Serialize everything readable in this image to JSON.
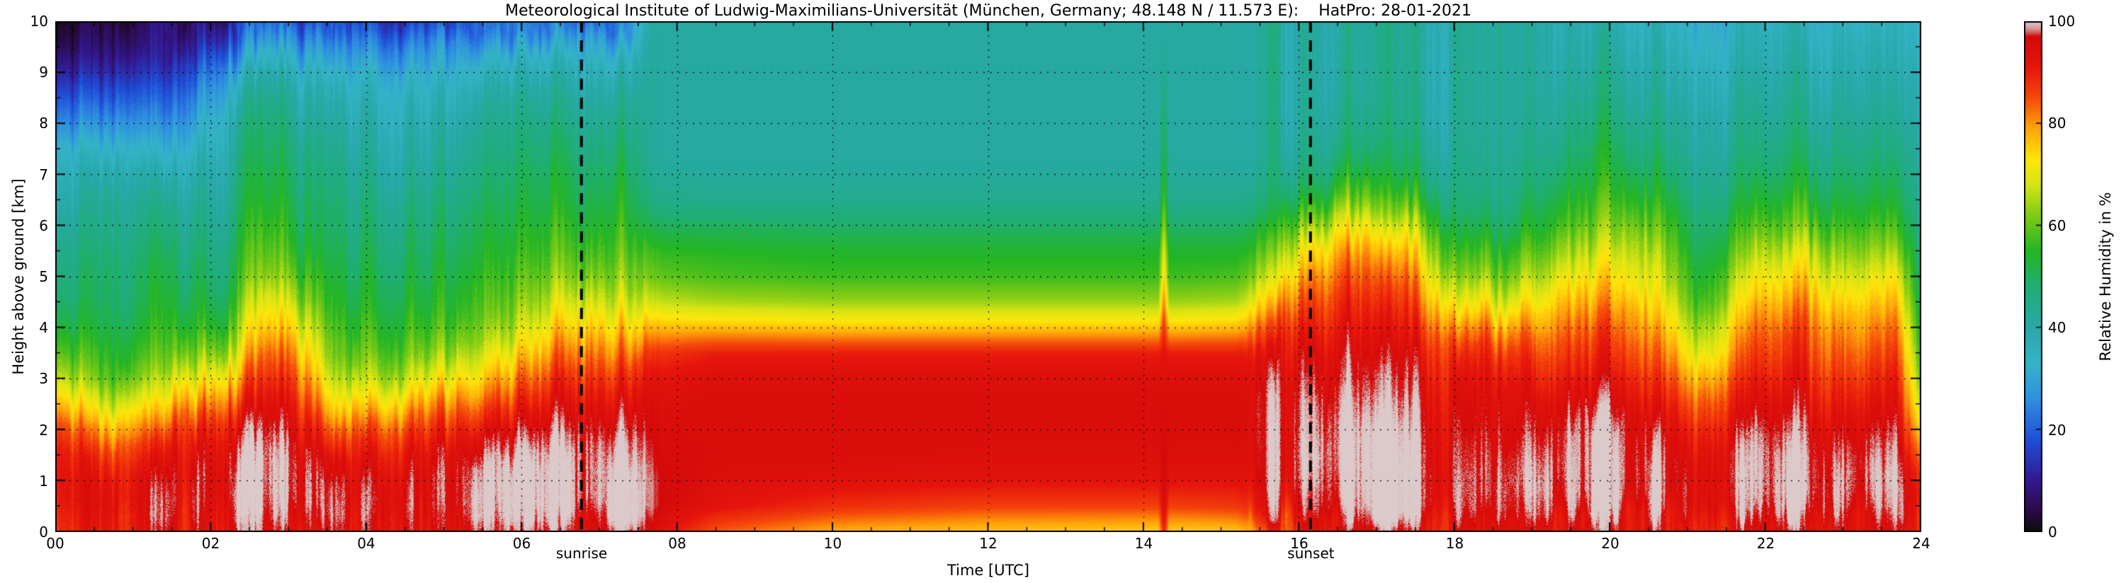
{
  "chart_data": {
    "type": "heatmap",
    "title": "Meteorological Institute of Ludwig-Maximilians-Universität (München, Germany; 48.148 N / 11.573 E):    HatPro: 28-01-2021",
    "xlabel": "Time [UTC]",
    "ylabel": "Height above ground [km]",
    "xlim": [
      0,
      24
    ],
    "ylim": [
      0,
      10
    ],
    "grid": {
      "x_step_hours": 2,
      "y_step_km": 1,
      "style": "dotted"
    },
    "x_major_ticks": [
      "00",
      "02",
      "04",
      "06",
      "08",
      "10",
      "12",
      "14",
      "16",
      "18",
      "20",
      "22",
      "24"
    ],
    "y_major_ticks": [
      "0",
      "1",
      "2",
      "3",
      "4",
      "5",
      "6",
      "7",
      "8",
      "9",
      "10"
    ],
    "colorbar": {
      "label": "Relative Humidity in %",
      "ticks": [
        "0",
        "20",
        "40",
        "60",
        "80",
        "100"
      ],
      "min": 0,
      "max": 100
    },
    "annotations": [
      {
        "label": "sunrise",
        "time_utc": 6.77
      },
      {
        "label": "sunset",
        "time_utc": 16.15
      }
    ],
    "colormap": [
      [
        0,
        "#0b0b0b"
      ],
      [
        4,
        "#2a0a46"
      ],
      [
        10,
        "#33188f"
      ],
      [
        18,
        "#1e4fd8"
      ],
      [
        26,
        "#2f8fe0"
      ],
      [
        33,
        "#35b4c8"
      ],
      [
        40,
        "#28a8a8"
      ],
      [
        48,
        "#1fae74"
      ],
      [
        55,
        "#23b523"
      ],
      [
        62,
        "#7ecb16"
      ],
      [
        68,
        "#d6e414"
      ],
      [
        73,
        "#ffe60a"
      ],
      [
        79,
        "#ffa50a"
      ],
      [
        85,
        "#f5480a"
      ],
      [
        91,
        "#e6150c"
      ],
      [
        97,
        "#d20a0a"
      ],
      [
        98.5,
        "#d49090"
      ],
      [
        100,
        "#dccaca"
      ]
    ],
    "heights_km": [
      0,
      0.5,
      1,
      1.5,
      2,
      2.5,
      3,
      3.5,
      4,
      4.5,
      5,
      5.5,
      6,
      6.5,
      7,
      7.5,
      8,
      8.5,
      9,
      9.5,
      10
    ],
    "profiles": [
      {
        "t": 0.0,
        "rh": [
          92,
          95,
          96,
          95,
          90,
          80,
          70,
          62,
          56,
          52,
          50,
          48,
          45,
          42,
          40,
          36,
          28,
          21,
          14,
          8,
          5
        ]
      },
      {
        "t": 0.8,
        "rh": [
          92,
          94,
          92,
          86,
          76,
          66,
          58,
          55,
          52,
          50,
          50,
          48,
          46,
          44,
          40,
          34,
          27,
          20,
          13,
          8,
          5
        ]
      },
      {
        "t": 1.5,
        "rh": [
          93,
          95,
          95,
          93,
          88,
          78,
          68,
          60,
          55,
          52,
          50,
          48,
          45,
          42,
          38,
          32,
          26,
          20,
          14,
          8,
          6
        ]
      },
      {
        "t": 2.2,
        "rh": [
          95,
          97,
          98,
          96,
          92,
          84,
          74,
          64,
          57,
          53,
          50,
          48,
          46,
          44,
          42,
          40,
          38,
          34,
          28,
          18,
          10
        ]
      },
      {
        "t": 2.7,
        "rh": [
          96,
          99,
          100,
          100,
          98,
          94,
          89,
          84,
          77,
          71,
          64,
          60,
          57,
          54,
          52,
          50,
          48,
          45,
          40,
          32,
          22
        ]
      },
      {
        "t": 3.1,
        "rh": [
          96,
          100,
          100,
          99,
          96,
          92,
          87,
          81,
          74,
          67,
          61,
          57,
          54,
          52,
          50,
          48,
          45,
          42,
          37,
          29,
          19
        ]
      },
      {
        "t": 3.6,
        "rh": [
          93,
          95,
          94,
          90,
          82,
          72,
          64,
          58,
          55,
          52,
          50,
          48,
          46,
          45,
          43,
          41,
          39,
          36,
          32,
          25,
          16
        ]
      },
      {
        "t": 4.3,
        "rh": [
          94,
          96,
          95,
          92,
          86,
          76,
          66,
          60,
          56,
          53,
          51,
          49,
          47,
          45,
          42,
          40,
          38,
          36,
          32,
          25,
          15
        ]
      },
      {
        "t": 5.0,
        "rh": [
          94,
          96,
          96,
          94,
          88,
          80,
          70,
          62,
          57,
          54,
          52,
          50,
          48,
          46,
          43,
          41,
          39,
          36,
          32,
          26,
          16
        ]
      },
      {
        "t": 5.8,
        "rh": [
          95,
          98,
          99,
          98,
          94,
          87,
          79,
          71,
          63,
          58,
          55,
          52,
          50,
          48,
          46,
          44,
          42,
          40,
          36,
          30,
          20
        ]
      },
      {
        "t": 6.5,
        "rh": [
          96,
          100,
          100,
          100,
          97,
          93,
          88,
          82,
          75,
          68,
          62,
          58,
          55,
          52,
          50,
          48,
          45,
          42,
          38,
          32,
          22
        ]
      },
      {
        "t": 7.3,
        "rh": [
          96,
          100,
          100,
          99,
          96,
          92,
          87,
          81,
          74,
          67,
          61,
          57,
          54,
          51,
          49,
          46,
          43,
          40,
          36,
          30,
          20
        ]
      },
      {
        "t": 7.7,
        "rh": [
          94,
          97,
          97,
          96,
          95,
          94,
          92,
          87,
          77,
          67,
          60,
          56,
          50,
          45,
          42,
          41,
          41,
          41,
          41,
          41,
          41
        ]
      },
      {
        "t": 8.5,
        "rh": [
          84,
          92,
          94,
          95,
          95,
          95,
          94,
          90,
          77,
          65,
          58,
          55,
          50,
          44,
          42,
          41,
          41,
          41,
          41,
          41,
          41
        ]
      },
      {
        "t": 10.0,
        "rh": [
          78,
          88,
          93,
          95,
          95,
          95,
          94,
          90,
          76,
          64,
          57,
          54,
          49,
          44,
          42,
          41,
          41,
          41,
          41,
          41,
          41
        ]
      },
      {
        "t": 12.0,
        "rh": [
          76,
          86,
          92,
          94,
          95,
          95,
          94,
          90,
          76,
          64,
          57,
          54,
          49,
          44,
          42,
          41,
          41,
          41,
          41,
          41,
          41
        ]
      },
      {
        "t": 14.19,
        "rh": [
          75,
          86,
          92,
          94,
          95,
          95,
          94,
          90,
          76,
          64,
          57,
          54,
          49,
          44,
          42,
          41,
          41,
          41,
          41,
          41,
          41
        ]
      },
      {
        "t": 14.26,
        "rh": [
          90,
          95,
          97,
          97,
          96,
          95,
          94,
          92,
          88,
          82,
          75,
          70,
          64,
          59,
          55,
          52,
          50,
          47,
          44,
          42,
          40
        ]
      },
      {
        "t": 14.33,
        "rh": [
          75,
          86,
          92,
          94,
          95,
          95,
          94,
          90,
          76,
          64,
          57,
          54,
          49,
          44,
          42,
          41,
          41,
          41,
          41,
          41,
          41
        ]
      },
      {
        "t": 15.2,
        "rh": [
          76,
          87,
          92,
          94,
          95,
          95,
          94,
          90,
          77,
          65,
          58,
          54,
          49,
          44,
          42,
          41,
          41,
          41,
          41,
          41,
          41
        ]
      },
      {
        "t": 15.7,
        "rh": [
          86,
          93,
          96,
          96,
          96,
          96,
          95,
          93,
          88,
          80,
          70,
          62,
          55,
          48,
          44,
          42,
          41,
          41,
          41,
          41,
          41
        ]
      },
      {
        "t": 16.2,
        "rh": [
          92,
          97,
          99,
          100,
          99,
          98,
          96,
          94,
          90,
          86,
          81,
          74,
          64,
          54,
          47,
          44,
          42,
          41,
          41,
          41,
          41
        ]
      },
      {
        "t": 16.8,
        "rh": [
          94,
          99,
          100,
          100,
          100,
          98,
          96,
          94,
          91,
          88,
          84,
          79,
          71,
          61,
          53,
          47,
          44,
          42,
          41,
          41,
          41
        ]
      },
      {
        "t": 17.4,
        "rh": [
          94,
          100,
          100,
          100,
          99,
          97,
          95,
          93,
          90,
          86,
          82,
          76,
          68,
          58,
          50,
          46,
          43,
          42,
          41,
          41,
          41
        ]
      },
      {
        "t": 18.0,
        "rh": [
          92,
          96,
          96,
          95,
          94,
          93,
          91,
          87,
          79,
          69,
          61,
          55,
          49,
          45,
          43,
          42,
          41,
          41,
          41,
          41,
          41
        ]
      },
      {
        "t": 18.7,
        "rh": [
          92,
          96,
          97,
          96,
          94,
          93,
          91,
          87,
          79,
          69,
          61,
          55,
          49,
          45,
          43,
          42,
          41,
          41,
          41,
          41,
          41
        ]
      },
      {
        "t": 19.2,
        "rh": [
          93,
          98,
          100,
          99,
          97,
          94,
          90,
          86,
          81,
          75,
          68,
          62,
          56,
          52,
          48,
          45,
          43,
          42,
          41,
          40,
          40
        ]
      },
      {
        "t": 19.8,
        "rh": [
          95,
          100,
          100,
          100,
          100,
          96,
          92,
          88,
          84,
          78,
          72,
          66,
          60,
          56,
          52,
          50,
          47,
          44,
          42,
          40,
          38
        ]
      },
      {
        "t": 20.5,
        "rh": [
          94,
          98,
          99,
          98,
          96,
          92,
          88,
          84,
          80,
          74,
          70,
          66,
          60,
          55,
          50,
          47,
          44,
          42,
          40,
          38,
          36
        ]
      },
      {
        "t": 21.2,
        "rh": [
          92,
          96,
          96,
          94,
          90,
          85,
          78,
          70,
          64,
          58,
          55,
          52,
          50,
          47,
          45,
          43,
          42,
          40,
          38,
          36,
          34
        ]
      },
      {
        "t": 21.8,
        "rh": [
          94,
          99,
          100,
          100,
          98,
          94,
          90,
          86,
          82,
          76,
          70,
          64,
          58,
          53,
          49,
          46,
          44,
          42,
          40,
          38,
          36
        ]
      },
      {
        "t": 22.5,
        "rh": [
          95,
          100,
          100,
          99,
          97,
          94,
          91,
          88,
          85,
          80,
          74,
          68,
          60,
          55,
          50,
          47,
          44,
          42,
          40,
          38,
          36
        ]
      },
      {
        "t": 23.2,
        "rh": [
          94,
          98,
          99,
          97,
          94,
          90,
          86,
          82,
          78,
          72,
          66,
          60,
          55,
          51,
          48,
          45,
          43,
          41,
          39,
          37,
          35
        ]
      },
      {
        "t": 23.7,
        "rh": [
          95,
          99,
          100,
          99,
          97,
          94,
          91,
          87,
          83,
          78,
          72,
          65,
          58,
          53,
          49,
          46,
          43,
          41,
          39,
          37,
          35
        ]
      },
      {
        "t": 24.0,
        "rh": [
          90,
          92,
          88,
          80,
          72,
          65,
          60,
          56,
          53,
          50,
          48,
          46,
          44,
          43,
          42,
          41,
          40,
          39,
          38,
          36,
          34
        ]
      }
    ]
  }
}
